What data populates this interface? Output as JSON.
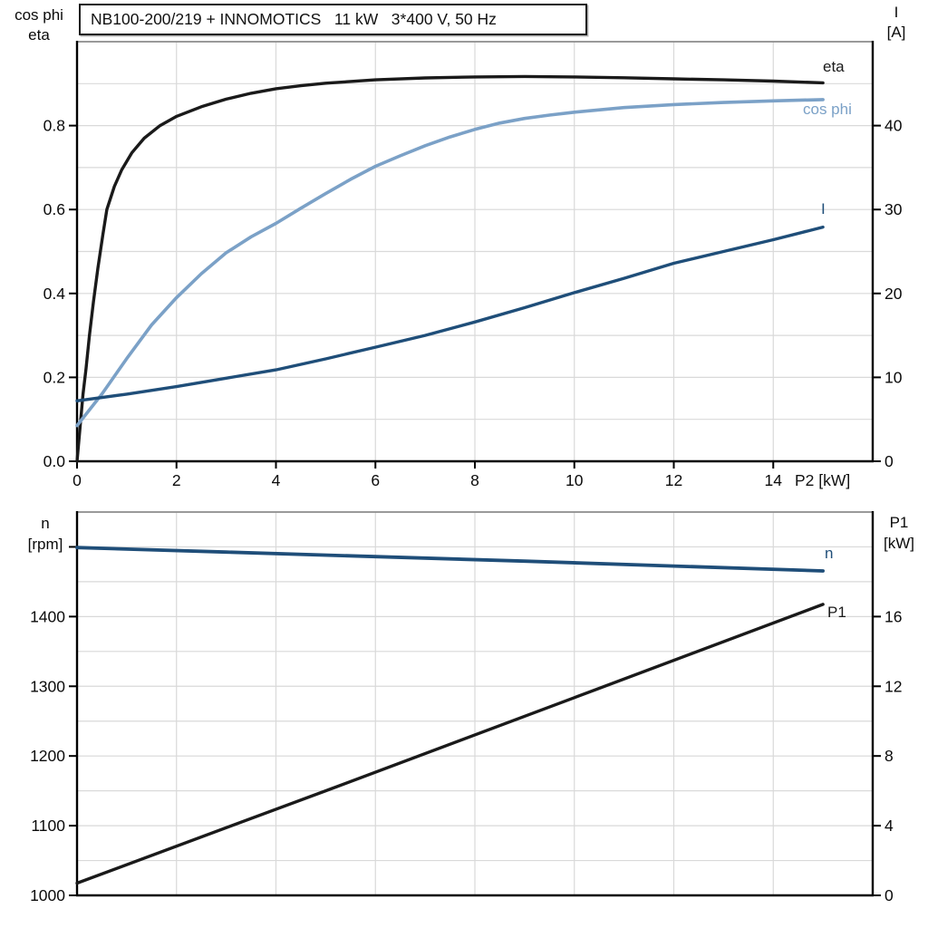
{
  "title": "NB100-200/219 + INNOMOTICS   11 kW   3*400 V, 50 Hz",
  "colors": {
    "black_curve": "#1a1a1a",
    "light_blue_curve": "#7ba1c7",
    "dark_blue_curve": "#1f4e79",
    "grid": "#d9d9d9",
    "axis": "#000000",
    "top_frame": "#8c8c8c"
  },
  "chart_data": [
    {
      "type": "line",
      "position": "top",
      "x_axis": {
        "label": "P2 [kW]",
        "min": 0,
        "max": 16,
        "tick_values": [
          0,
          2,
          4,
          6,
          8,
          10,
          12,
          14
        ],
        "tick_labels": [
          "0",
          "2",
          "4",
          "6",
          "8",
          "10",
          "12",
          "14"
        ],
        "gridlines": [
          2,
          4,
          6,
          8,
          10,
          12,
          14
        ],
        "grid": true
      },
      "y_left": {
        "header_lines": [
          "cos phi",
          "eta"
        ],
        "min": 0,
        "max": 1.0,
        "tick_values": [
          0,
          0.2,
          0.4,
          0.6,
          0.8
        ],
        "tick_labels": [
          "0.0",
          "0.2",
          "0.4",
          "0.6",
          "0.8"
        ],
        "gridlines": [
          0.1,
          0.2,
          0.3,
          0.4,
          0.5,
          0.6,
          0.7,
          0.8,
          0.9
        ]
      },
      "y_right": {
        "header_lines": [
          "I",
          "[A]"
        ],
        "min": 0,
        "max": 50,
        "tick_values": [
          0,
          10,
          20,
          30,
          40
        ],
        "tick_labels": [
          "0",
          "10",
          "20",
          "30",
          "40"
        ]
      },
      "series": [
        {
          "id": "eta",
          "label": "eta",
          "axis": "left",
          "color": "#1a1a1a",
          "stroke_width": 3.4,
          "points": [
            [
              0,
              0
            ],
            [
              0.06,
              0.08
            ],
            [
              0.12,
              0.16
            ],
            [
              0.18,
              0.22
            ],
            [
              0.25,
              0.3
            ],
            [
              0.33,
              0.38
            ],
            [
              0.42,
              0.46
            ],
            [
              0.52,
              0.54
            ],
            [
              0.6,
              0.6
            ],
            [
              0.75,
              0.655
            ],
            [
              0.9,
              0.695
            ],
            [
              1.1,
              0.735
            ],
            [
              1.35,
              0.77
            ],
            [
              1.67,
              0.8
            ],
            [
              2,
              0.822
            ],
            [
              2.5,
              0.845
            ],
            [
              3,
              0.863
            ],
            [
              3.5,
              0.877
            ],
            [
              4,
              0.888
            ],
            [
              4.5,
              0.895
            ],
            [
              5,
              0.901
            ],
            [
              6,
              0.909
            ],
            [
              7,
              0.9135
            ],
            [
              8,
              0.916
            ],
            [
              9,
              0.917
            ],
            [
              10,
              0.916
            ],
            [
              11,
              0.914
            ],
            [
              12,
              0.9115
            ],
            [
              13,
              0.909
            ],
            [
              14,
              0.906
            ],
            [
              15,
              0.902
            ]
          ]
        },
        {
          "id": "cos-phi",
          "label": "cos phi",
          "axis": "left",
          "color": "#7ba1c7",
          "stroke_width": 3.6,
          "points": [
            [
              0,
              0.085
            ],
            [
              0.5,
              0.16
            ],
            [
              1,
              0.245
            ],
            [
              1.5,
              0.325
            ],
            [
              2,
              0.39
            ],
            [
              2.5,
              0.447
            ],
            [
              3,
              0.497
            ],
            [
              3.5,
              0.535
            ],
            [
              4,
              0.567
            ],
            [
              4.5,
              0.603
            ],
            [
              5,
              0.638
            ],
            [
              5.5,
              0.672
            ],
            [
              6,
              0.703
            ],
            [
              6.5,
              0.728
            ],
            [
              7,
              0.752
            ],
            [
              7.5,
              0.773
            ],
            [
              8,
              0.791
            ],
            [
              8.5,
              0.806
            ],
            [
              9,
              0.817
            ],
            [
              9.5,
              0.825
            ],
            [
              10,
              0.832
            ],
            [
              11,
              0.843
            ],
            [
              12,
              0.85
            ],
            [
              13,
              0.855
            ],
            [
              14,
              0.859
            ],
            [
              15,
              0.862
            ]
          ]
        },
        {
          "id": "current",
          "label": "I",
          "axis": "right",
          "color": "#1f4e79",
          "stroke_width": 3.4,
          "points": [
            [
              0,
              7.2
            ],
            [
              1,
              8.0
            ],
            [
              2,
              8.9
            ],
            [
              3,
              9.9
            ],
            [
              4,
              10.9
            ],
            [
              5,
              12.2
            ],
            [
              6,
              13.6
            ],
            [
              7,
              15.0
            ],
            [
              8,
              16.6
            ],
            [
              9,
              18.3
            ],
            [
              10,
              20.1
            ],
            [
              11,
              21.8
            ],
            [
              12,
              23.6
            ],
            [
              13,
              25.0
            ],
            [
              14,
              26.4
            ],
            [
              15,
              27.9
            ]
          ]
        }
      ]
    },
    {
      "type": "line",
      "position": "bottom",
      "x_axis": {
        "label": "",
        "min": 0,
        "max": 16,
        "tick_values": [],
        "tick_labels": [],
        "gridlines": [
          2,
          4,
          6,
          8,
          10,
          12,
          14
        ],
        "grid": true
      },
      "y_left": {
        "header_lines": [
          "n",
          "[rpm]"
        ],
        "min": 1000,
        "max": 1550,
        "tick_values": [
          1000,
          1100,
          1200,
          1300,
          1400
        ],
        "tick_labels": [
          "1000",
          "1100",
          "1200",
          "1300",
          "1400"
        ],
        "extra_tick_values": [
          1500
        ],
        "gridlines": [
          1050,
          1100,
          1150,
          1200,
          1250,
          1300,
          1350,
          1400,
          1450,
          1500
        ]
      },
      "y_right": {
        "header_lines": [
          "P1",
          "[kW]"
        ],
        "min": 0,
        "max": 22,
        "tick_values": [
          0,
          4,
          8,
          12,
          16
        ],
        "tick_labels": [
          "0",
          "4",
          "8",
          "12",
          "16"
        ]
      },
      "series": [
        {
          "id": "speed",
          "label": "n",
          "axis": "left",
          "color": "#1f4e79",
          "stroke_width": 3.8,
          "points": [
            [
              0,
              1499
            ],
            [
              3,
              1492.5
            ],
            [
              6,
              1486
            ],
            [
              9,
              1479.5
            ],
            [
              12,
              1472.5
            ],
            [
              15,
              1465.5
            ]
          ]
        },
        {
          "id": "input-power",
          "label": "P1",
          "axis": "right",
          "color": "#1a1a1a",
          "stroke_width": 3.4,
          "points": [
            [
              0,
              0.7
            ],
            [
              5,
              6.0
            ],
            [
              10,
              11.35
            ],
            [
              15,
              16.7
            ]
          ]
        }
      ]
    }
  ],
  "curve_labels": {
    "eta": "eta",
    "cos_phi": "cos phi",
    "current": "I",
    "speed": "n",
    "input_power": "P1"
  }
}
